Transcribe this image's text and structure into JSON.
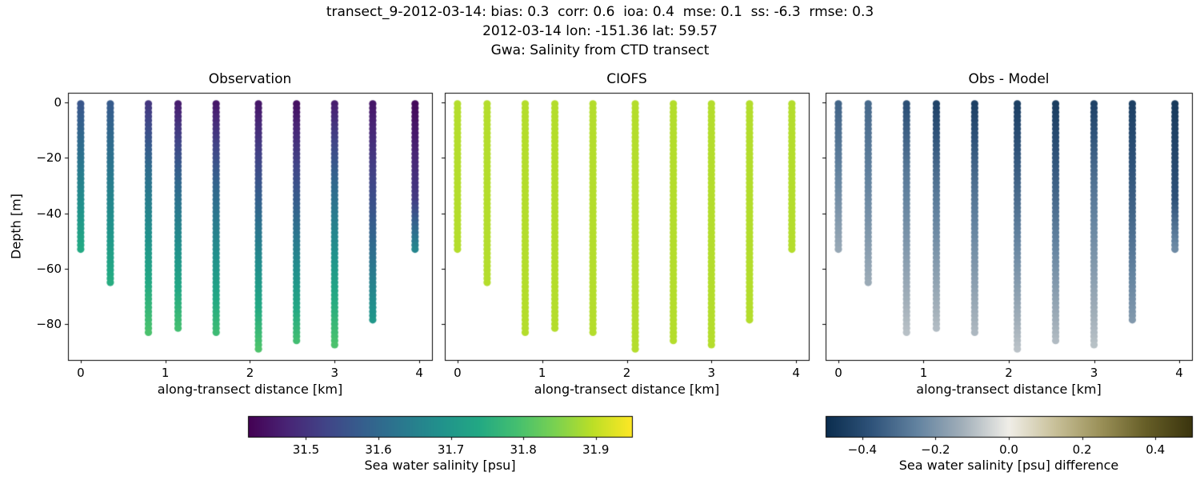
{
  "header": {
    "line1": "transect_9-2012-03-14: bias: 0.3  corr: 0.6  ioa: 0.4  mse: 0.1  ss: -6.3  rmse: 0.3",
    "line2": "2012-03-14 lon: -151.36 lat: 59.57",
    "line3": "Gwa: Salinity from CTD transect"
  },
  "chart_data": {
    "type": "scatter",
    "x_axis_label": "along-transect distance [km]",
    "y_axis_label": "Depth [m]",
    "xlim": [
      -0.15,
      4.15
    ],
    "ylim": [
      -93,
      3.5
    ],
    "xticks": {
      "values": [
        0,
        1,
        2,
        3,
        4
      ],
      "labels": [
        "0",
        "1",
        "2",
        "3",
        "4"
      ]
    },
    "yticks": {
      "values": [
        0,
        -20,
        -40,
        -60,
        -80
      ],
      "labels": [
        "0",
        "−20",
        "−40",
        "−60",
        "−80"
      ]
    },
    "panels": [
      {
        "title": "Observation",
        "field": "obs",
        "colormap": "viridis",
        "color_range": [
          31.42,
          31.95
        ],
        "show_y_tick_labels": true
      },
      {
        "title": "CIOFS",
        "field": "model",
        "colormap": "viridis",
        "color_range": [
          31.42,
          31.95
        ],
        "show_y_tick_labels": false
      },
      {
        "title": "Obs - Model",
        "field": "diff",
        "colormap": "diff",
        "color_range": [
          -0.5,
          0.5
        ],
        "show_y_tick_labels": false
      }
    ],
    "model_salinity_psu": 31.89,
    "stations": [
      {
        "x_km": 0.0,
        "max_depth_m": 53,
        "obs_profile": [
          [
            0,
            31.56
          ],
          [
            20,
            31.62
          ],
          [
            53,
            31.74
          ]
        ]
      },
      {
        "x_km": 0.35,
        "max_depth_m": 66,
        "obs_profile": [
          [
            0,
            31.57
          ],
          [
            25,
            31.63
          ],
          [
            66,
            31.75
          ]
        ]
      },
      {
        "x_km": 0.8,
        "max_depth_m": 84,
        "obs_profile": [
          [
            0,
            31.5
          ],
          [
            25,
            31.61
          ],
          [
            84,
            31.8
          ]
        ]
      },
      {
        "x_km": 1.15,
        "max_depth_m": 82,
        "obs_profile": [
          [
            0,
            31.46
          ],
          [
            30,
            31.6
          ],
          [
            82,
            31.79
          ]
        ]
      },
      {
        "x_km": 1.6,
        "max_depth_m": 83,
        "obs_profile": [
          [
            0,
            31.45
          ],
          [
            30,
            31.59
          ],
          [
            83,
            31.78
          ]
        ]
      },
      {
        "x_km": 2.1,
        "max_depth_m": 89,
        "obs_profile": [
          [
            0,
            31.45
          ],
          [
            35,
            31.58
          ],
          [
            89,
            31.8
          ]
        ]
      },
      {
        "x_km": 2.55,
        "max_depth_m": 87,
        "obs_profile": [
          [
            0,
            31.44
          ],
          [
            35,
            31.57
          ],
          [
            87,
            31.79
          ]
        ]
      },
      {
        "x_km": 3.0,
        "max_depth_m": 88,
        "obs_profile": [
          [
            0,
            31.46
          ],
          [
            30,
            31.6
          ],
          [
            88,
            31.8
          ]
        ]
      },
      {
        "x_km": 3.45,
        "max_depth_m": 79,
        "obs_profile": [
          [
            0,
            31.45
          ],
          [
            40,
            31.56
          ],
          [
            79,
            31.7
          ]
        ]
      },
      {
        "x_km": 3.95,
        "max_depth_m": 53,
        "obs_profile": [
          [
            0,
            31.43
          ],
          [
            35,
            31.51
          ],
          [
            53,
            31.66
          ]
        ]
      }
    ],
    "colorbars": [
      {
        "label": "Sea water salinity [psu]",
        "colormap": "viridis",
        "range": [
          31.42,
          31.95
        ],
        "ticks": {
          "values": [
            31.5,
            31.6,
            31.7,
            31.8,
            31.9
          ],
          "labels": [
            "31.5",
            "31.6",
            "31.7",
            "31.8",
            "31.9"
          ]
        }
      },
      {
        "label": "Sea water salinity [psu] difference",
        "colormap": "diff",
        "range": [
          -0.5,
          0.5
        ],
        "ticks": {
          "values": [
            -0.4,
            -0.2,
            0.0,
            0.2,
            0.4
          ],
          "labels": [
            "−0.4",
            "−0.2",
            "0.0",
            "0.2",
            "0.4"
          ]
        }
      }
    ],
    "colormaps": {
      "viridis": [
        "#440154",
        "#482475",
        "#414487",
        "#355f8d",
        "#2a788e",
        "#21918c",
        "#22a884",
        "#44bf70",
        "#7ad151",
        "#bddf26",
        "#fde725"
      ],
      "diff": [
        "#0b2d4e",
        "#2f537a",
        "#6383a0",
        "#a3b0ba",
        "#f0eee8",
        "#c9c19a",
        "#9b9159",
        "#665e27",
        "#3b350e"
      ]
    }
  }
}
